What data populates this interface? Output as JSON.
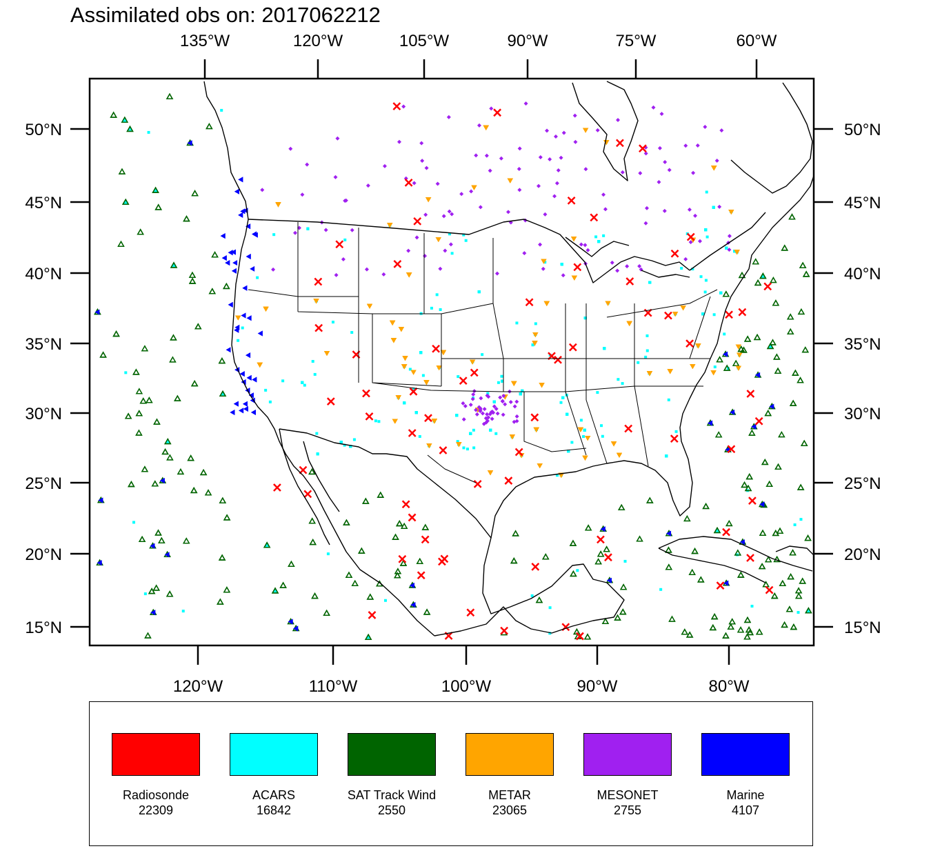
{
  "title": "Assimilated obs on: 2017062212",
  "top_lon_labels": [
    "135°W",
    "120°W",
    "105°W",
    "90°W",
    "75°W",
    "60°W"
  ],
  "bottom_lon_labels": [
    "120°W",
    "110°W",
    "100°W",
    "90°W",
    "80°W"
  ],
  "lat_labels": [
    "50°N",
    "45°N",
    "40°N",
    "35°N",
    "30°N",
    "25°N",
    "20°N",
    "15°N"
  ],
  "legend": [
    {
      "name": "Radiosonde",
      "count": "22309",
      "color": "#ff0000",
      "marker": "cross"
    },
    {
      "name": "ACARS",
      "count": "16842",
      "color": "#00ffff",
      "marker": "dot"
    },
    {
      "name": "SAT Track Wind",
      "count": "2550",
      "color": "#006400",
      "marker": "triangle-up"
    },
    {
      "name": "METAR",
      "count": "23065",
      "color": "#ffa500",
      "marker": "triangle-down"
    },
    {
      "name": "MESONET",
      "count": "2755",
      "color": "#a020f0",
      "marker": "diamond"
    },
    {
      "name": "Marine",
      "count": "4107",
      "color": "#0000ff",
      "marker": "triangle-left"
    }
  ]
}
